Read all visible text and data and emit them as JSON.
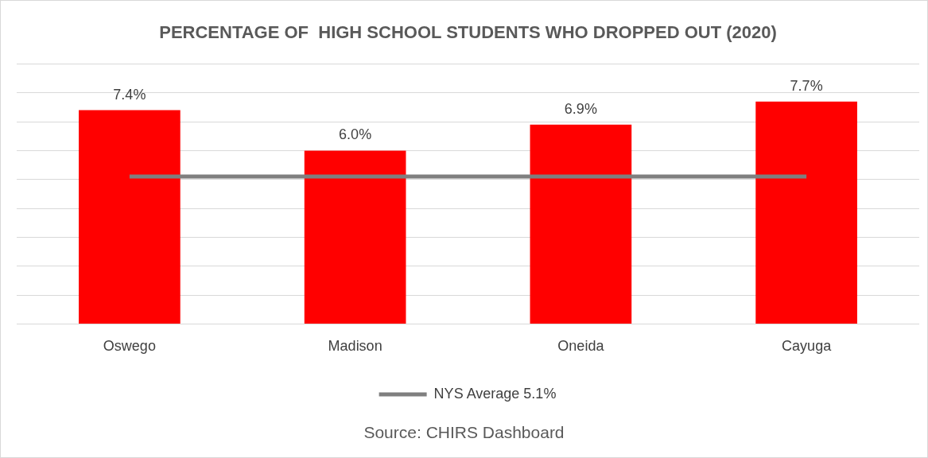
{
  "chart_data": {
    "type": "bar",
    "title": "PERCENTAGE OF  HIGH SCHOOL STUDENTS WHO DROPPED OUT (2020)",
    "categories": [
      "Oswego",
      "Madison",
      "Oneida",
      "Cayuga"
    ],
    "series": [
      {
        "color": "#ff0000",
        "values": [
          7.4,
          6.0,
          6.9,
          7.7
        ],
        "value_labels": [
          "7.4%",
          "6.0%",
          "6.9%",
          "7.7%"
        ]
      },
      {
        "type": "line",
        "name": "NYS Average 5.1%",
        "color": "#7f7f7f",
        "values": [
          5.1,
          5.1,
          5.1,
          5.1
        ]
      }
    ],
    "ylim": [
      0,
      9
    ],
    "yticks": [
      {
        "value": 0,
        "label": null
      },
      {
        "value": 1,
        "label": null
      },
      {
        "value": 2,
        "label": null
      },
      {
        "value": 3,
        "label": null
      },
      {
        "value": 4,
        "label": null
      },
      {
        "value": 5,
        "label": null
      },
      {
        "value": 6,
        "label": null
      },
      {
        "value": 7,
        "label": null
      },
      {
        "value": 8,
        "label": null
      },
      {
        "value": 9,
        "label": null
      }
    ],
    "tick_labels": "x",
    "grid": "y",
    "legend": "bottom",
    "marker": "none",
    "annotations": [
      "Source: CHIRS Dashboard"
    ]
  }
}
